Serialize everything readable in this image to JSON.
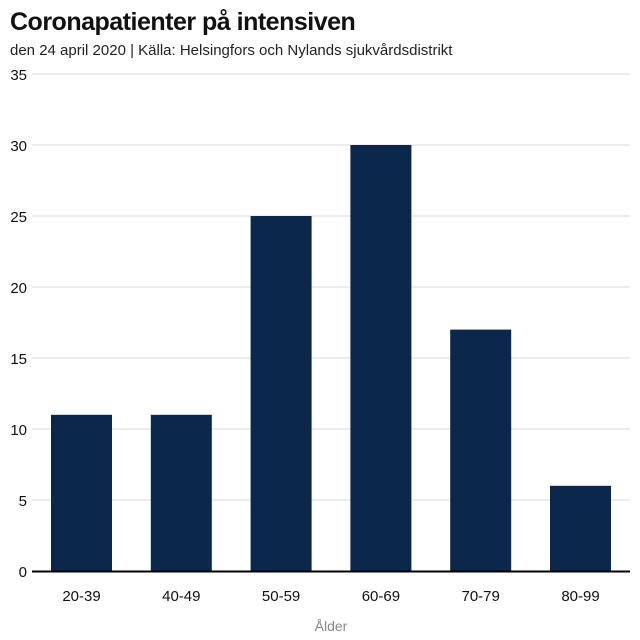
{
  "header": {
    "title": "Coronapatienter på intensiven",
    "subtitle": "den 24 april 2020 | Källa: Helsingfors och Nylands sjukvårdsdistrikt"
  },
  "colors": {
    "bar": "#0b274b",
    "grid": "#d9d9d9",
    "axis": "#000000",
    "tick_text": "#111111",
    "xlabel_text": "#888888"
  },
  "chart_data": {
    "type": "bar",
    "title": "Coronapatienter på intensiven",
    "subtitle": "den 24 april 2020 | Källa: Helsingfors och Nylands sjukvårdsdistrikt",
    "xlabel": "Ålder",
    "ylabel": "",
    "categories": [
      "20-39",
      "40-49",
      "50-59",
      "60-69",
      "70-79",
      "80-99"
    ],
    "values": [
      11,
      11,
      25,
      30,
      17,
      6
    ],
    "ylim": [
      0,
      35
    ],
    "yticks": [
      0,
      5,
      10,
      15,
      20,
      25,
      30,
      35
    ],
    "grid": true,
    "legend": "none"
  }
}
